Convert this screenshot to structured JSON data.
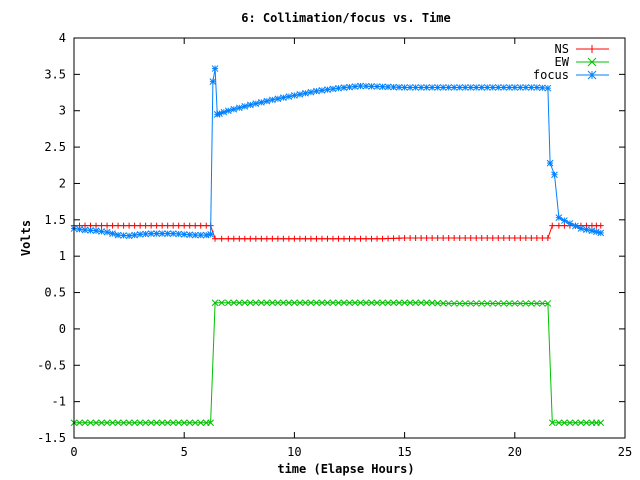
{
  "chart_data": {
    "type": "line",
    "title": "6: Collimation/focus vs. Time",
    "xlabel": "time (Elapse Hours)",
    "ylabel": "Volts",
    "xlim": [
      0,
      25
    ],
    "ylim": [
      -1.5,
      4
    ],
    "x_ticks": [
      0,
      5,
      10,
      15,
      20,
      25
    ],
    "x_tick_labels": [
      "0",
      "5",
      "10",
      "15",
      "20",
      "25"
    ],
    "y_ticks": [
      -1.5,
      -1,
      -0.5,
      0,
      0.5,
      1,
      1.5,
      2,
      2.5,
      3,
      3.5,
      4
    ],
    "y_tick_labels": [
      "-1.5",
      "-1",
      "-0.5",
      "0",
      "0.5",
      "1",
      "1.5",
      "2",
      "2.5",
      "3",
      "3.5",
      "4"
    ],
    "grid": false,
    "legend_position": "top-right",
    "series": [
      {
        "name": "NS",
        "color": "#ff0000",
        "marker": "plus",
        "x": [
          0,
          1,
          2,
          3,
          4,
          5,
          6,
          6.2,
          6.4,
          7,
          8,
          9,
          10,
          11,
          12,
          13,
          14,
          15,
          16,
          17,
          18,
          19,
          20,
          21,
          21.5,
          21.7,
          22,
          22.5,
          23,
          23.5,
          23.9
        ],
        "values": [
          1.42,
          1.42,
          1.42,
          1.42,
          1.42,
          1.42,
          1.42,
          1.42,
          1.24,
          1.24,
          1.24,
          1.24,
          1.24,
          1.24,
          1.24,
          1.24,
          1.24,
          1.25,
          1.25,
          1.25,
          1.25,
          1.25,
          1.25,
          1.25,
          1.25,
          1.42,
          1.42,
          1.42,
          1.42,
          1.42,
          1.42
        ]
      },
      {
        "name": "EW",
        "color": "#00c000",
        "marker": "cross",
        "x": [
          0,
          1,
          2,
          3,
          4,
          5,
          6,
          6.2,
          6.4,
          7,
          8,
          9,
          10,
          11,
          12,
          13,
          14,
          15,
          16,
          17,
          18,
          19,
          20,
          21,
          21.5,
          21.7,
          22,
          22.5,
          23,
          23.5,
          23.9
        ],
        "values": [
          -1.29,
          -1.29,
          -1.29,
          -1.29,
          -1.29,
          -1.29,
          -1.29,
          -1.29,
          0.36,
          0.36,
          0.36,
          0.36,
          0.36,
          0.36,
          0.36,
          0.36,
          0.36,
          0.36,
          0.36,
          0.35,
          0.35,
          0.35,
          0.35,
          0.35,
          0.35,
          -1.29,
          -1.29,
          -1.29,
          -1.29,
          -1.29,
          -1.29
        ]
      },
      {
        "name": "focus",
        "color": "#0080ff",
        "marker": "star",
        "x": [
          0,
          0.5,
          1,
          1.5,
          2,
          2.5,
          3,
          3.5,
          4,
          4.5,
          5,
          5.5,
          6,
          6.2,
          6.3,
          6.4,
          6.5,
          6.6,
          7,
          8,
          9,
          10,
          11,
          12,
          13,
          14,
          15,
          16,
          17,
          18,
          19,
          20,
          21,
          21.5,
          21.6,
          21.8,
          22,
          22.5,
          23,
          23.5,
          23.9
        ],
        "values": [
          1.38,
          1.36,
          1.35,
          1.33,
          1.29,
          1.28,
          1.3,
          1.31,
          1.31,
          1.31,
          1.3,
          1.29,
          1.29,
          1.3,
          3.4,
          3.58,
          2.95,
          2.96,
          3.0,
          3.08,
          3.15,
          3.21,
          3.27,
          3.31,
          3.34,
          3.33,
          3.32,
          3.32,
          3.32,
          3.32,
          3.32,
          3.32,
          3.32,
          3.31,
          2.28,
          2.12,
          1.53,
          1.45,
          1.38,
          1.35,
          1.32
        ]
      }
    ]
  }
}
